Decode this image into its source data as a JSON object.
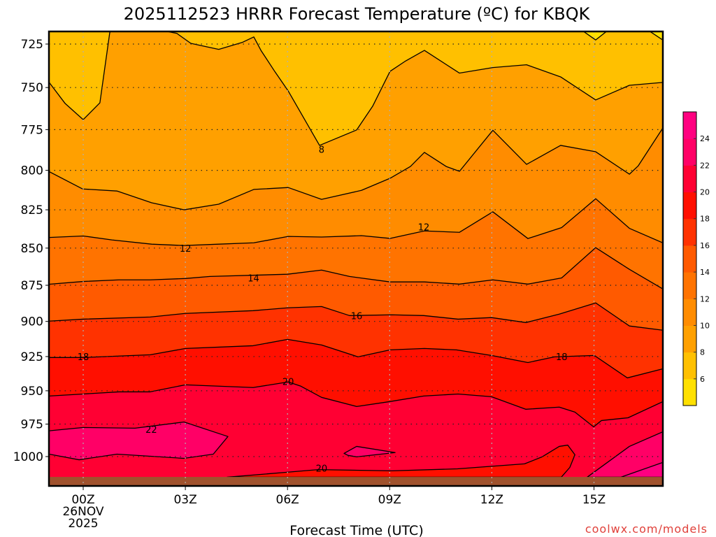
{
  "chart_data": {
    "type": "heatmap",
    "subtype": "filled-contour",
    "title": "2025112523 HRRR Forecast Temperature (ºC) for KBQK",
    "xlabel": "Forecast Time (UTC)",
    "ylabel": "",
    "credit": "coolwx.com/models",
    "xlim": [
      -1,
      17.02
    ],
    "ylim_hpa": [
      718,
      1023.4
    ],
    "y_scale": "log",
    "x_ticks": [
      {
        "hour": 0,
        "label": "00Z",
        "sub1": "26NOV",
        "sub2": "2025"
      },
      {
        "hour": 3,
        "label": "03Z"
      },
      {
        "hour": 6,
        "label": "06Z"
      },
      {
        "hour": 9,
        "label": "09Z"
      },
      {
        "hour": 12,
        "label": "12Z"
      },
      {
        "hour": 15,
        "label": "15Z"
      }
    ],
    "y_ticks": [
      725,
      750,
      775,
      800,
      825,
      850,
      875,
      900,
      925,
      950,
      975,
      1000
    ],
    "ground_hpa": 1016,
    "colors": {
      "ground": "#A0522D",
      "grid_h": "#222222",
      "grid_v": "#b0b0b0"
    },
    "colorbar": {
      "bins": [
        {
          "range": [
            4,
            6
          ],
          "color": "#FFE000"
        },
        {
          "range": [
            6,
            8
          ],
          "color": "#FFC000"
        },
        {
          "range": [
            8,
            10
          ],
          "color": "#FFA000"
        },
        {
          "range": [
            10,
            12
          ],
          "color": "#FF8C00"
        },
        {
          "range": [
            12,
            14
          ],
          "color": "#FF7300"
        },
        {
          "range": [
            14,
            16
          ],
          "color": "#FF5A00"
        },
        {
          "range": [
            16,
            18
          ],
          "color": "#FF3200"
        },
        {
          "range": [
            18,
            20
          ],
          "color": "#FF0F00"
        },
        {
          "range": [
            20,
            22
          ],
          "color": "#FF0033"
        },
        {
          "range": [
            22,
            24
          ],
          "color": "#FF0066"
        },
        {
          "range": [
            24,
            26
          ],
          "color": "#FF0080"
        }
      ],
      "labels": [
        "6",
        "8",
        "10",
        "12",
        "14",
        "16",
        "18",
        "20",
        "22",
        "24"
      ]
    },
    "background_fill": "#FFC000",
    "contours": [
      {
        "level": 8,
        "kind": "below",
        "fill": "#FFA000",
        "points": [
          [
            -1,
            747
          ],
          [
            -0.53,
            759.4
          ],
          [
            0,
            769
          ],
          [
            0.49,
            759
          ],
          [
            0.78,
            718.5
          ],
          [
            0.8,
            718
          ],
          [
            2.49,
            718
          ],
          [
            2.75,
            719
          ],
          [
            3.16,
            724.6
          ],
          [
            3.98,
            728
          ],
          [
            4.68,
            724
          ],
          [
            5.01,
            721
          ],
          [
            5.22,
            728.6
          ],
          [
            5.63,
            740.8
          ],
          [
            6.02,
            752
          ],
          [
            6.94,
            784.6
          ],
          [
            8.03,
            775.2
          ],
          [
            8.5,
            761
          ],
          [
            9.01,
            740.6
          ],
          [
            9.47,
            734.6
          ],
          [
            10.02,
            728.6
          ],
          [
            11.05,
            741.6
          ],
          [
            12.03,
            738.4
          ],
          [
            13.02,
            736.8
          ],
          [
            14.02,
            743.8
          ],
          [
            15.05,
            757.3
          ],
          [
            16.04,
            748.7
          ],
          [
            17.02,
            747
          ]
        ]
      },
      {
        "level": 10,
        "kind": "below",
        "fill": "#FF8C00",
        "points": [
          [
            -1,
            800.8
          ],
          [
            -0.02,
            811.7
          ],
          [
            0.99,
            813
          ],
          [
            2.01,
            820.5
          ],
          [
            2.96,
            825
          ],
          [
            3.98,
            821.4
          ],
          [
            5.01,
            812
          ],
          [
            6.02,
            810.8
          ],
          [
            7,
            818.3
          ],
          [
            8.17,
            812.6
          ],
          [
            9.01,
            805
          ],
          [
            9.61,
            797.6
          ],
          [
            10.02,
            788.9
          ],
          [
            10.66,
            797.6
          ],
          [
            11.05,
            800.6
          ],
          [
            12.03,
            775.4
          ],
          [
            13.02,
            796.3
          ],
          [
            14.02,
            784.6
          ],
          [
            15.05,
            788.5
          ],
          [
            16.04,
            802.4
          ],
          [
            16.3,
            797.2
          ],
          [
            17.02,
            774.1
          ]
        ]
      },
      {
        "level": 12,
        "kind": "below",
        "fill": "#FF7300",
        "points": [
          [
            -1,
            843
          ],
          [
            0,
            842
          ],
          [
            0.84,
            844.6
          ],
          [
            2.01,
            847.4
          ],
          [
            2.96,
            848.3
          ],
          [
            3.98,
            847.4
          ],
          [
            5.01,
            846.5
          ],
          [
            6.02,
            842.3
          ],
          [
            7,
            842.7
          ],
          [
            8.17,
            841.8
          ],
          [
            9.01,
            843.6
          ],
          [
            10.02,
            838.7
          ],
          [
            11.05,
            839.6
          ],
          [
            12.03,
            826.3
          ],
          [
            13.06,
            843.7
          ],
          [
            14.05,
            836.5
          ],
          [
            15.05,
            817.9
          ],
          [
            16.04,
            837
          ],
          [
            17.02,
            846.5
          ]
        ]
      },
      {
        "level": 14,
        "kind": "below",
        "fill": "#FF5A00",
        "points": [
          [
            -1,
            874.3
          ],
          [
            0,
            872.4
          ],
          [
            1.05,
            871.3
          ],
          [
            1.97,
            871.3
          ],
          [
            3,
            870.4
          ],
          [
            3.72,
            869
          ],
          [
            6,
            867.5
          ],
          [
            7,
            864.7
          ],
          [
            7.82,
            869
          ],
          [
            9.01,
            872.7
          ],
          [
            10.02,
            872.7
          ],
          [
            11.05,
            874.2
          ],
          [
            12.03,
            871.3
          ],
          [
            13.06,
            874.2
          ],
          [
            14.05,
            870
          ],
          [
            15.05,
            849.7
          ],
          [
            16.04,
            864.2
          ],
          [
            17.02,
            877.5
          ]
        ]
      },
      {
        "level": 16,
        "kind": "below",
        "fill": "#FF3200",
        "points": [
          [
            -1,
            899.8
          ],
          [
            0,
            898.4
          ],
          [
            1.97,
            896.9
          ],
          [
            3,
            894.4
          ],
          [
            4.99,
            892.5
          ],
          [
            6,
            890.5
          ],
          [
            7,
            889.6
          ],
          [
            7.82,
            895.9
          ],
          [
            9.06,
            895.4
          ],
          [
            10,
            895.9
          ],
          [
            11.01,
            898.4
          ],
          [
            11.99,
            897.3
          ],
          [
            13,
            900.8
          ],
          [
            13.98,
            894.9
          ],
          [
            15.05,
            887.1
          ],
          [
            16.04,
            903.2
          ],
          [
            17.02,
            906.2
          ]
        ]
      },
      {
        "level": 18,
        "kind": "below",
        "fill": "#FF0F00",
        "points": [
          [
            -1,
            925.7
          ],
          [
            0,
            925.7
          ],
          [
            1.97,
            923.7
          ],
          [
            3,
            919.2
          ],
          [
            4.99,
            917.2
          ],
          [
            6,
            912.7
          ],
          [
            7,
            916.7
          ],
          [
            8.07,
            925.2
          ],
          [
            9.01,
            920.2
          ],
          [
            10.02,
            919.2
          ],
          [
            10.96,
            920.2
          ],
          [
            11.99,
            924.2
          ],
          [
            13.06,
            929.3
          ],
          [
            13.84,
            925.2
          ],
          [
            15.01,
            924.2
          ],
          [
            15.98,
            940.5
          ],
          [
            17.02,
            933.9
          ]
        ]
      },
      {
        "level": 20,
        "kind": "below",
        "fill": "#FF0033",
        "points": [
          [
            -1,
            953.9
          ],
          [
            0,
            952.4
          ],
          [
            1.05,
            950.8
          ],
          [
            1.97,
            950.8
          ],
          [
            3,
            945.6
          ],
          [
            4.99,
            947.6
          ],
          [
            6.02,
            943.5
          ],
          [
            6.39,
            946.6
          ],
          [
            7,
            954.9
          ],
          [
            8.03,
            961.7
          ],
          [
            8.99,
            958.1
          ],
          [
            10,
            953.9
          ],
          [
            11.01,
            952.4
          ],
          [
            11.99,
            954.4
          ],
          [
            13,
            963.8
          ],
          [
            13.98,
            962.2
          ],
          [
            14.44,
            965.9
          ],
          [
            14.99,
            977.1
          ],
          [
            15.22,
            972.3
          ],
          [
            16,
            970.2
          ],
          [
            17.02,
            958.1
          ]
        ]
      },
      {
        "level": 22,
        "kind": "closed",
        "fill": "#FF0066",
        "points": [
          [
            -1,
            980.1
          ],
          [
            0,
            977.6
          ],
          [
            1.52,
            978.1
          ],
          [
            2.96,
            973.4
          ],
          [
            4.25,
            984.5
          ],
          [
            3.82,
            998.1
          ],
          [
            2.96,
            1001.4
          ],
          [
            0.99,
            998.1
          ],
          [
            -0.12,
            1002.5
          ],
          [
            -1,
            998.1
          ]
        ]
      },
      {
        "level": 22,
        "kind": "closed",
        "fill": "#FF0066",
        "points": [
          [
            7.66,
            997.5
          ],
          [
            8.03,
            992.1
          ],
          [
            9.16,
            996.9
          ],
          [
            8.03,
            1000.2
          ],
          [
            7.78,
            999.1
          ]
        ]
      },
      {
        "level": 20,
        "kind": "closed",
        "fill": "#FF0F00",
        "points": [
          [
            4.23,
            1016.2
          ],
          [
            5.98,
            1012.3
          ],
          [
            6.9,
            1010.2
          ],
          [
            9.06,
            1011.2
          ],
          [
            10.99,
            1009.6
          ],
          [
            12.96,
            1005.7
          ],
          [
            13.47,
            1000.3
          ],
          [
            13.98,
            992.1
          ],
          [
            14.23,
            991.1
          ],
          [
            14.44,
            998.6
          ],
          [
            14.29,
            1008.5
          ],
          [
            14.04,
            1016.2
          ]
        ]
      },
      {
        "level": 22,
        "kind": "closed",
        "fill": "#FF0066",
        "points": [
          [
            14.8,
            1016.2
          ],
          [
            16.04,
            992.1
          ],
          [
            17.02,
            980.9
          ],
          [
            17.02,
            1016.2
          ]
        ]
      },
      {
        "level": 24,
        "kind": "closed",
        "fill": "#FF0080",
        "points": [
          [
            15.79,
            1016.2
          ],
          [
            17.02,
            1004.6
          ],
          [
            17.02,
            1016.2
          ]
        ]
      },
      {
        "level": 6,
        "kind": "closed",
        "fill": "#FFE000",
        "points": [
          [
            14.7,
            718
          ],
          [
            15.05,
            722.7
          ],
          [
            15.36,
            718
          ]
        ]
      },
      {
        "level": 6,
        "kind": "closed",
        "fill": "#FFE000",
        "points": [
          [
            16.65,
            718
          ],
          [
            17.02,
            722.7
          ],
          [
            17.02,
            718
          ]
        ]
      }
    ],
    "contour_labels": [
      {
        "text": "8",
        "hour": 7.0,
        "hpa": 787
      },
      {
        "text": "12",
        "hour": 3.0,
        "hpa": 850
      },
      {
        "text": "12",
        "hour": 10.0,
        "hpa": 836
      },
      {
        "text": "14",
        "hour": 5.0,
        "hpa": 870
      },
      {
        "text": "16",
        "hour": 8.03,
        "hpa": 896
      },
      {
        "text": "18",
        "hour": 0.0,
        "hpa": 925
      },
      {
        "text": "18",
        "hour": 14.05,
        "hpa": 925
      },
      {
        "text": "20",
        "hour": 6.02,
        "hpa": 943
      },
      {
        "text": "22",
        "hour": 2.0,
        "hpa": 979
      },
      {
        "text": "20",
        "hour": 7.0,
        "hpa": 1009
      }
    ]
  }
}
